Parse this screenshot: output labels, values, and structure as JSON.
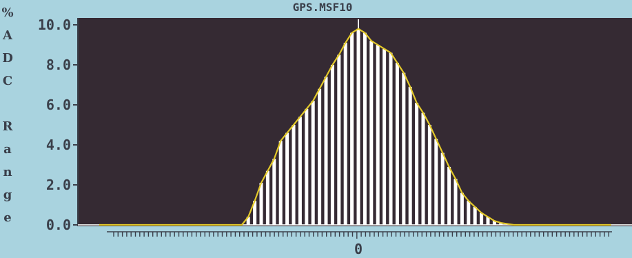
{
  "chart_data": {
    "type": "bar",
    "title": "GPS.MSF10",
    "ylabel": "% ADC Range",
    "ylabel_letters": [
      "%",
      "A",
      "D",
      "C",
      "",
      "R",
      "a",
      "n",
      "g",
      "e"
    ],
    "y_ticks": [
      {
        "value": 0,
        "label": "0.0"
      },
      {
        "value": 2,
        "label": "2.0"
      },
      {
        "value": 4,
        "label": "4.0"
      },
      {
        "value": 6,
        "label": "6.0"
      },
      {
        "value": 8,
        "label": "8.0"
      },
      {
        "value": 10,
        "label": "10.0"
      }
    ],
    "ylim": [
      0,
      10
    ],
    "x_center_label": "0",
    "xlim": [
      -45,
      45
    ],
    "x": [
      -17,
      -16,
      -15,
      -14,
      -13,
      -12,
      -11,
      -10,
      -9,
      -8,
      -7,
      -6,
      -5,
      -4,
      -3,
      -2,
      -1,
      0,
      1,
      2,
      3,
      4,
      5,
      6,
      7,
      8,
      9,
      10,
      11,
      12,
      13,
      14,
      15,
      16,
      17,
      18,
      19,
      20,
      21,
      22,
      23
    ],
    "values": [
      0.4,
      1.2,
      2.1,
      2.7,
      3.3,
      4.2,
      4.6,
      5.0,
      5.4,
      5.8,
      6.2,
      6.8,
      7.4,
      8.0,
      8.5,
      9.1,
      9.6,
      9.8,
      9.6,
      9.2,
      9.0,
      8.8,
      8.6,
      8.1,
      7.6,
      6.9,
      6.1,
      5.6,
      5.0,
      4.3,
      3.6,
      2.9,
      2.3,
      1.6,
      1.2,
      0.9,
      0.6,
      0.4,
      0.2,
      0.1,
      0.05
    ],
    "baseline_value": 0,
    "colors": {
      "background": "#a9d3df",
      "plot_background": "#352a33",
      "bars": "#ffffff",
      "envelope": "#e4ca2a",
      "baseline": "#d8d8d8",
      "text": "#3a3f4a"
    },
    "grid": false,
    "legend": "none"
  }
}
